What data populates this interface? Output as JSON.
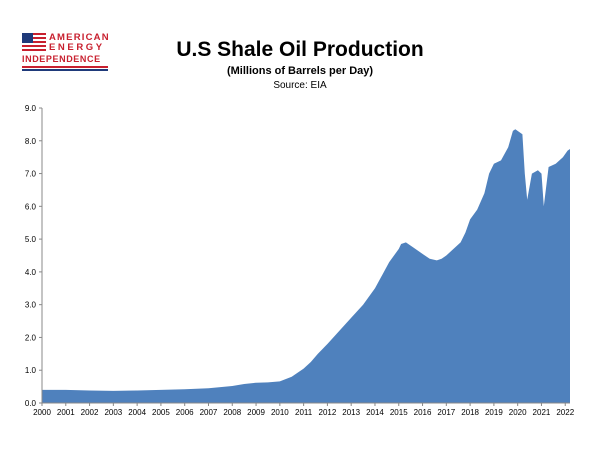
{
  "logo": {
    "line1": "AMERICAN",
    "line2": "ENERGY",
    "line3": "INDEPENDENCE"
  },
  "colors": {
    "area_fill": "#4f81bd",
    "logo_red": "#c8202f",
    "logo_blue": "#1f3a7a"
  },
  "chart_data": {
    "type": "area",
    "title": "U.S Shale Oil Production",
    "subtitle": "(Millions of Barrels per Day)",
    "source": "Source: EIA",
    "xlabel": "",
    "ylabel": "",
    "xlim": [
      2000,
      2022.2
    ],
    "ylim": [
      0,
      9
    ],
    "yticks": [
      "0.0",
      "1.0",
      "2.0",
      "3.0",
      "4.0",
      "5.0",
      "6.0",
      "7.0",
      "8.0",
      "9.0"
    ],
    "xticks": [
      "2000",
      "2001",
      "2002",
      "2003",
      "2004",
      "2005",
      "2006",
      "2007",
      "2008",
      "2009",
      "2010",
      "2011",
      "2012",
      "2013",
      "2014",
      "2015",
      "2016",
      "2017",
      "2018",
      "2019",
      "2020",
      "2021",
      "2022"
    ],
    "grid": false,
    "legend": "none",
    "series": [
      {
        "x": [
          2000,
          2001,
          2002,
          2003,
          2004,
          2005,
          2006,
          2007,
          2008,
          2008.5,
          2009,
          2009.5,
          2010,
          2010.5,
          2011,
          2011.3,
          2011.6,
          2012,
          2012.5,
          2013,
          2013.5,
          2014,
          2014.3,
          2014.6,
          2015,
          2015.1,
          2015.3,
          2015.6,
          2016,
          2016.3,
          2016.6,
          2016.8,
          2017,
          2017.3,
          2017.6,
          2017.8,
          2018,
          2018.3,
          2018.6,
          2018.8,
          2019,
          2019.3,
          2019.6,
          2019.8,
          2019.9,
          2020.2,
          2020.3,
          2020.4,
          2020.6,
          2020.85,
          2021,
          2021.1,
          2021.3,
          2021.6,
          2021.9,
          2022.1,
          2022.2
        ],
        "y": [
          0.4,
          0.4,
          0.38,
          0.37,
          0.38,
          0.4,
          0.42,
          0.45,
          0.52,
          0.58,
          0.62,
          0.63,
          0.66,
          0.8,
          1.05,
          1.25,
          1.5,
          1.8,
          2.2,
          2.6,
          3.0,
          3.5,
          3.9,
          4.3,
          4.7,
          4.85,
          4.9,
          4.75,
          4.55,
          4.4,
          4.35,
          4.4,
          4.5,
          4.7,
          4.9,
          5.2,
          5.6,
          5.9,
          6.4,
          7.0,
          7.3,
          7.4,
          7.8,
          8.3,
          8.35,
          8.2,
          7.0,
          6.2,
          7.0,
          7.1,
          7.0,
          6.0,
          7.2,
          7.3,
          7.5,
          7.7,
          7.75
        ]
      }
    ]
  }
}
